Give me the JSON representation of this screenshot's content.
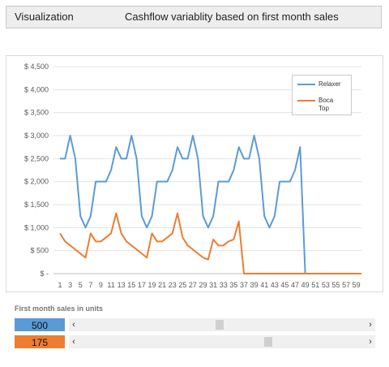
{
  "header": {
    "left_label": "Visualization",
    "title": "Cashflow variablity based on first month sales"
  },
  "chart_data": {
    "type": "line",
    "title": "",
    "xlabel": "",
    "ylabel": "",
    "ylim": [
      0,
      4500
    ],
    "y_ticks": [
      "$ -",
      "$ 500",
      "$ 1,000",
      "$ 1,500",
      "$ 2,000",
      "$ 2,500",
      "$ 3,000",
      "$ 3,500",
      "$ 4,000",
      "$ 4,500"
    ],
    "x_ticks": [
      "1",
      "3",
      "5",
      "7",
      "9",
      "11",
      "13",
      "15",
      "17",
      "19",
      "21",
      "23",
      "25",
      "27",
      "29",
      "31",
      "33",
      "35",
      "37",
      "39",
      "41",
      "43",
      "45",
      "47",
      "49",
      "51",
      "53",
      "55",
      "57",
      "59"
    ],
    "x": [
      1,
      2,
      3,
      4,
      5,
      6,
      7,
      8,
      9,
      10,
      11,
      12,
      13,
      14,
      15,
      16,
      17,
      18,
      19,
      20,
      21,
      22,
      23,
      24,
      25,
      26,
      27,
      28,
      29,
      30,
      31,
      32,
      33,
      34,
      35,
      36,
      37,
      38,
      39,
      40,
      41,
      42,
      43,
      44,
      45,
      46,
      47,
      48,
      49,
      50,
      51,
      52,
      53,
      54,
      55,
      56,
      57,
      58,
      59,
      60
    ],
    "grid": "horizontal",
    "legend_position": "top-right",
    "series": [
      {
        "name": "Relaxer",
        "color": "#5b9bd5",
        "values": [
          2500,
          2500,
          3000,
          2500,
          1250,
          1000,
          1250,
          2000,
          2000,
          2000,
          2250,
          2750,
          2500,
          2500,
          3000,
          2500,
          1250,
          1000,
          1250,
          2000,
          2000,
          2000,
          2250,
          2750,
          2500,
          2500,
          3000,
          2500,
          1250,
          1000,
          1250,
          2000,
          2000,
          2000,
          2250,
          2750,
          2500,
          2500,
          3000,
          2500,
          1250,
          1000,
          1250,
          2000,
          2000,
          2000,
          2250,
          2750,
          0,
          0,
          0,
          0,
          0,
          0,
          0,
          0,
          0,
          0,
          0,
          0
        ]
      },
      {
        "name": "Boca Top",
        "color": "#ed7d31",
        "values": [
          875,
          700,
          612,
          525,
          437,
          350,
          875,
          700,
          700,
          787,
          875,
          1312,
          875,
          700,
          612,
          525,
          437,
          350,
          875,
          700,
          700,
          787,
          875,
          1312,
          787,
          612,
          525,
          437,
          350,
          306,
          743,
          612,
          612,
          700,
          743,
          1137,
          0,
          0,
          0,
          0,
          0,
          0,
          0,
          0,
          0,
          0,
          0,
          0,
          0,
          0,
          0,
          0,
          0,
          0,
          0,
          0,
          0,
          0,
          0,
          0
        ]
      }
    ]
  },
  "legend": {
    "items": [
      {
        "label": "Relaxer",
        "color": "#5b9bd5"
      },
      {
        "label": "Boca Top",
        "color": "#ed7d31"
      }
    ]
  },
  "controls": {
    "section_label": "First month sales in units",
    "sliders": [
      {
        "value": "500",
        "color": "#5b9bd5",
        "position_fraction": 0.49
      },
      {
        "value": "175",
        "color": "#ed7d31",
        "position_fraction": 0.665
      }
    ],
    "left_arrow": "‹",
    "right_arrow": "›"
  }
}
